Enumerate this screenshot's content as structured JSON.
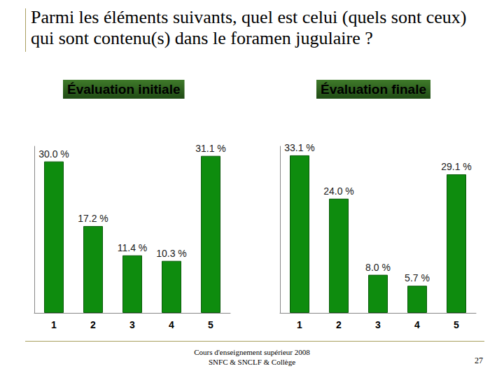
{
  "title": "Parmi les éléments suivants, quel est celui  (quels sont ceux) qui sont contenu(s) dans le foramen jugulaire ?",
  "footer": [
    "Cours d'enseignement supérieur 2008",
    "SNFC & SNCLF & Collège"
  ],
  "page": 27,
  "chart_data": [
    {
      "type": "bar",
      "title": "Évaluation initiale",
      "categories": [
        "1",
        "2",
        "3",
        "4",
        "5"
      ],
      "values": [
        30.0,
        17.2,
        11.4,
        10.3,
        31.1
      ],
      "value_labels": [
        "30.0 %",
        "17.2 %",
        "11.4 %",
        "10.3 %",
        "31.1 %"
      ],
      "color": "#0e8c0e",
      "ylim": [
        0,
        33
      ],
      "grid": false,
      "data_labels": true,
      "tick_labels": "x"
    },
    {
      "type": "bar",
      "title": "Évaluation finale",
      "categories": [
        "1",
        "2",
        "3",
        "4",
        "5"
      ],
      "values": [
        33.1,
        24.0,
        8.0,
        5.7,
        29.1
      ],
      "value_labels": [
        "33.1 %",
        "24.0 %",
        "8.0 %",
        "5.7 %",
        "29.1 %"
      ],
      "color": "#0e8c0e",
      "ylim": [
        0,
        35
      ],
      "grid": false,
      "data_labels": true,
      "tick_labels": "x"
    }
  ]
}
